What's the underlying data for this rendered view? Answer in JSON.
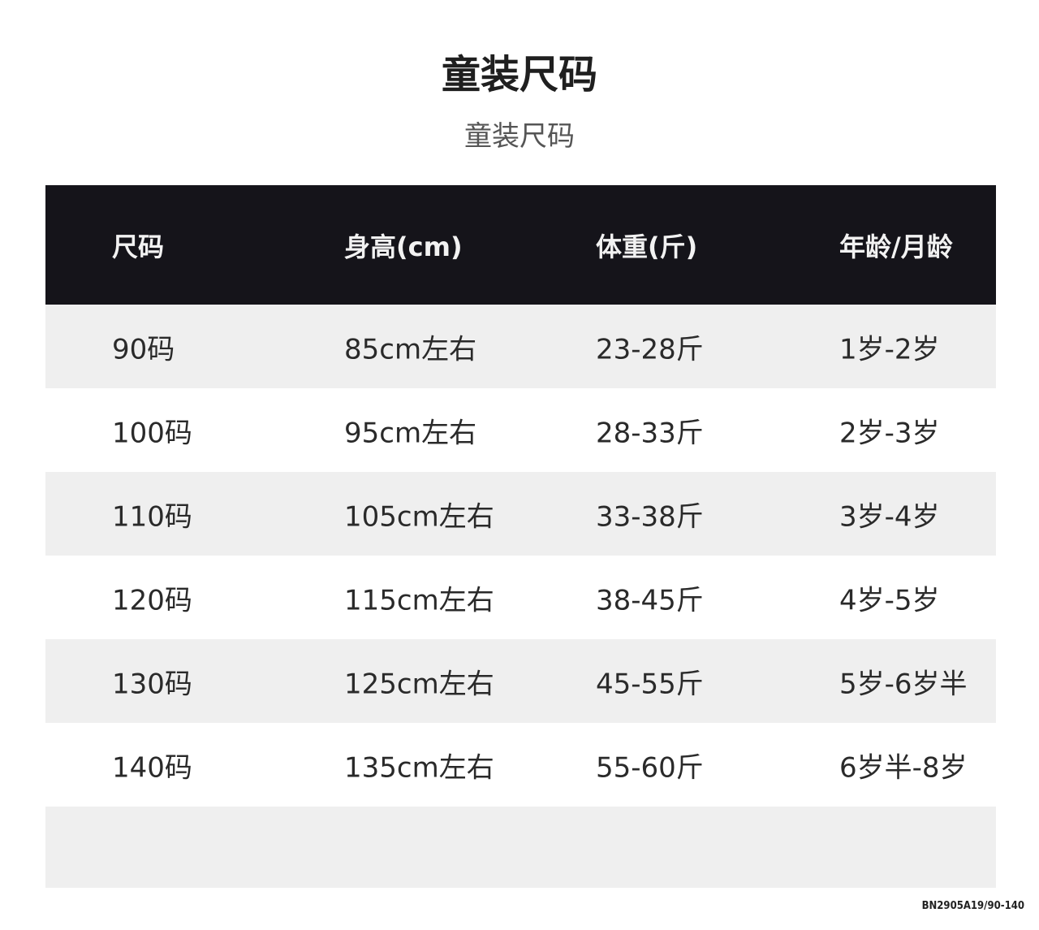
{
  "title": "童装尺码",
  "subtitle": "童装尺码",
  "table": {
    "headers": [
      "尺码",
      "身高(cm)",
      "体重(斤)",
      "年龄/月龄"
    ],
    "rows": [
      [
        "90码",
        "85cm左右",
        "23-28斤",
        "1岁-2岁"
      ],
      [
        "100码",
        "95cm左右",
        "28-33斤",
        "2岁-3岁"
      ],
      [
        "110码",
        "105cm左右",
        "33-38斤",
        "3岁-4岁"
      ],
      [
        "120码",
        "115cm左右",
        "38-45斤",
        "4岁-5岁"
      ],
      [
        "130码",
        "125cm左右",
        "45-55斤",
        "5岁-6岁半"
      ],
      [
        "140码",
        "135cm左右",
        "55-60斤",
        "6岁半-8岁"
      ]
    ]
  },
  "product_code": "BN2905A19/90-140",
  "colors": {
    "header_bg": "#15141a",
    "stripe": "#efefef"
  }
}
